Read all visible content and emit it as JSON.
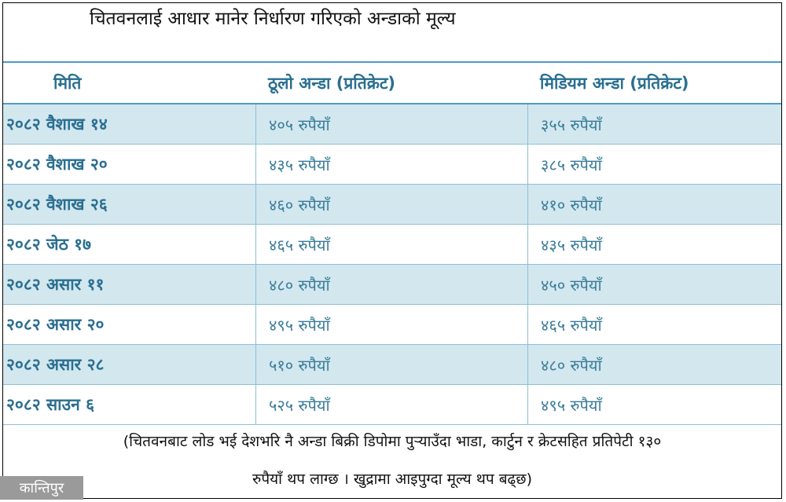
{
  "title": "चितवनलाई आधार मानेर निर्धारण गरिएको अन्डाको मूल्य",
  "table": {
    "headers": [
      "मिति",
      "ठूलो अन्डा (प्रतिक्रेट)",
      "मिडियम अन्डा (प्रतिक्रेट)"
    ],
    "rows": [
      [
        "२०८२ वैशाख १४",
        "४०५ रुपैयाँ",
        "३५५ रुपैयाँ"
      ],
      [
        "२०८२ वैशाख २०",
        "४३५ रुपैयाँ",
        "३८५ रुपैयाँ"
      ],
      [
        "२०८२ वैशाख २६",
        "४६० रुपैयाँ",
        "४१० रुपैयाँ"
      ],
      [
        "२०८२ जेठ १७",
        "४६५ रुपैयाँ",
        "४३५ रुपैयाँ"
      ],
      [
        "२०८२ असार ११",
        "४८० रुपैयाँ",
        "४५० रुपैयाँ"
      ],
      [
        "२०८२ असार २०",
        "४९५ रुपैयाँ",
        "४६५ रुपैयाँ"
      ],
      [
        "२०८२ असार २८",
        "५१० रुपैयाँ",
        "४८० रुपैयाँ"
      ],
      [
        "२०८२ साउन ६",
        "५२५ रुपैयाँ",
        "४९५ रुपैयाँ"
      ]
    ]
  },
  "note": {
    "line1": "(चितवनबाट लोड भई देशभरि नै अन्डा बिक्री डिपोमा पुऱ्याउँदा भाडा, कार्टुन र क्रेटसहित प्रतिपेटी १३०",
    "line2": "रुपैयाँ थप लाग्छ । खुद्रामा आइपुग्दा मूल्य थप बढ्छ)"
  },
  "logo": "कान्तिपुर",
  "colors": {
    "header_text": "#2a6f91",
    "row_shade": "#d3e7ef",
    "rule": "#4a9cc9"
  }
}
